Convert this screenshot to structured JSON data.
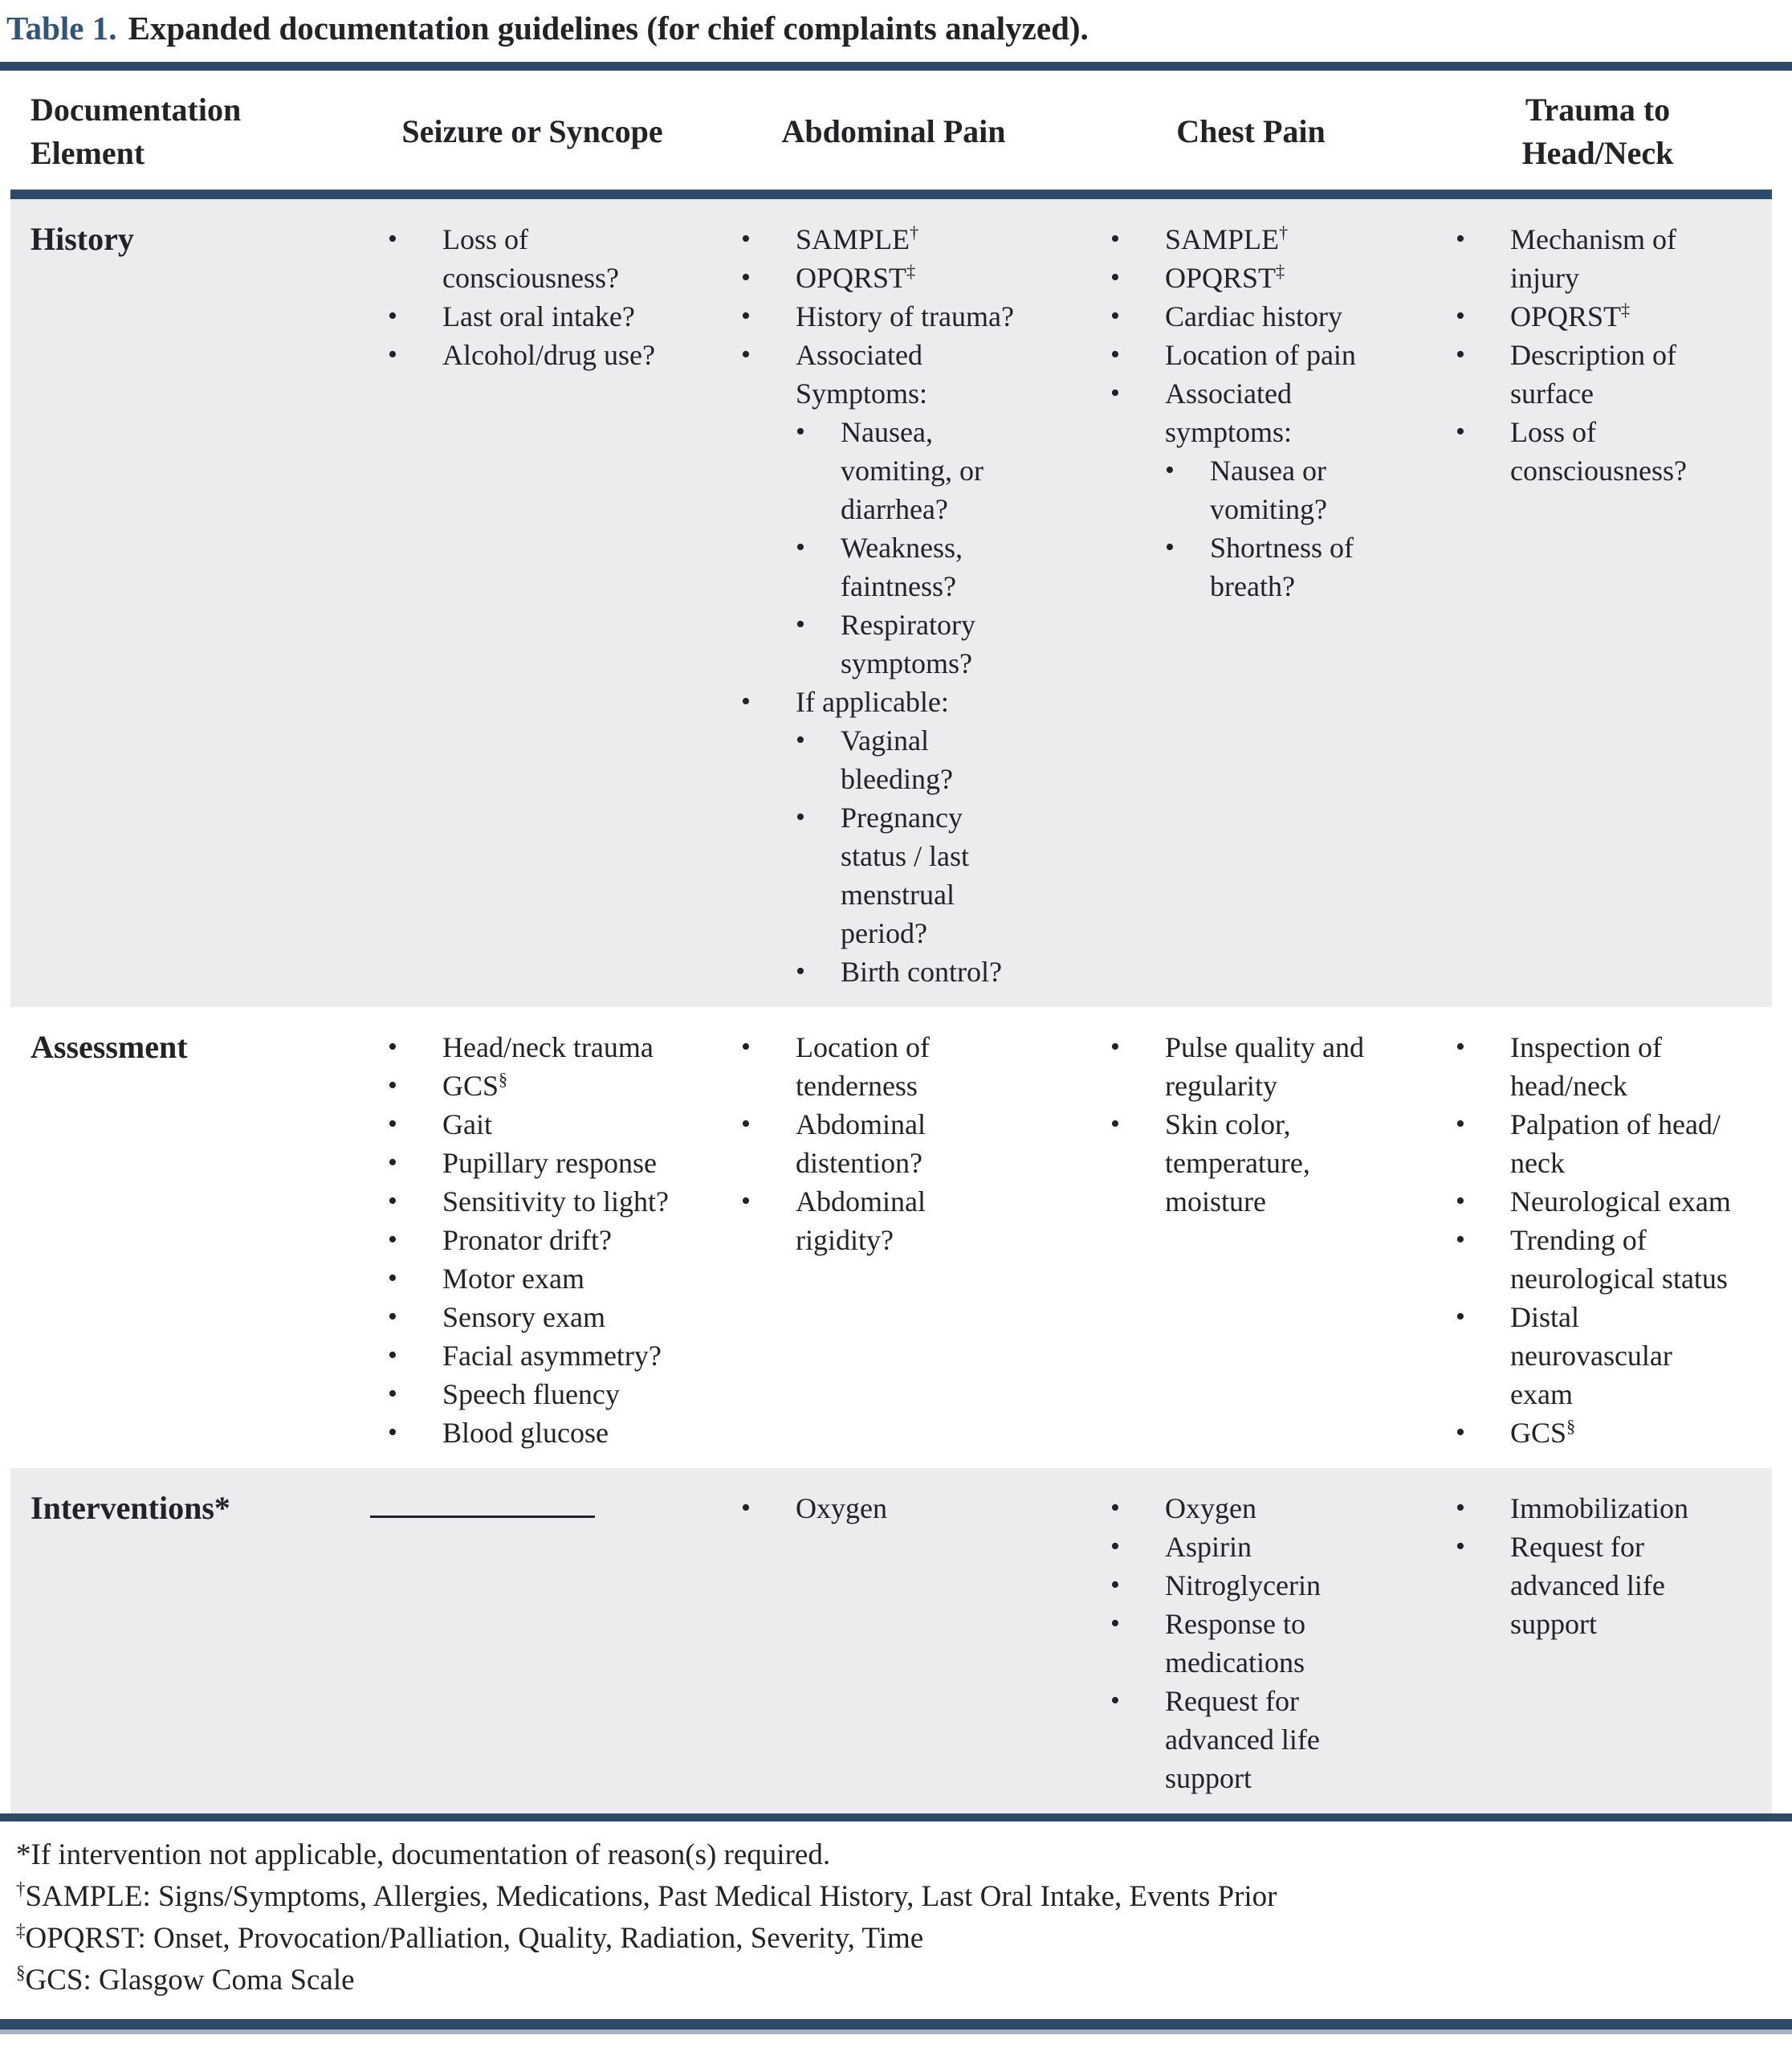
{
  "title": {
    "label": "Table 1.",
    "caption": "Expanded documentation guidelines (for chief complaints analyzed)."
  },
  "colors": {
    "rule_navy": "#2d4a68",
    "title_blue": "#30557c",
    "shaded_row": "#ececee",
    "text": "#232327",
    "bottom_accent": "#a9b3c1"
  },
  "header": {
    "col0": "Documentation\nElement",
    "cols": [
      "Seizure or Syncope",
      "Abdominal Pain",
      "Chest Pain",
      "Trauma to\nHead/Neck"
    ]
  },
  "rows": [
    {
      "label": "History",
      "shaded": true,
      "cells": [
        {
          "items": [
            {
              "text": "Loss of\nconsciousness?"
            },
            {
              "text": "Last oral intake?"
            },
            {
              "text": "Alcohol/drug use?"
            }
          ]
        },
        {
          "items": [
            {
              "text": "SAMPLE",
              "sup": "†"
            },
            {
              "text": "OPQRST",
              "sup": "‡"
            },
            {
              "text": "History of trauma?"
            },
            {
              "text": "Associated\nSymptoms:",
              "children": [
                {
                  "text": "Nausea,\nvomiting, or\ndiarrhea?"
                },
                {
                  "text": "Weakness,\nfaintness?"
                },
                {
                  "text": "Respiratory\nsymptoms?"
                }
              ]
            },
            {
              "text": "If applicable:",
              "children": [
                {
                  "text": "Vaginal\nbleeding?"
                },
                {
                  "text": "Pregnancy\nstatus / last\nmenstrual\nperiod?"
                },
                {
                  "text": "Birth control?"
                }
              ]
            }
          ]
        },
        {
          "items": [
            {
              "text": "SAMPLE",
              "sup": "†"
            },
            {
              "text": "OPQRST",
              "sup": "‡"
            },
            {
              "text": "Cardiac history"
            },
            {
              "text": "Location of pain"
            },
            {
              "text": "Associated\nsymptoms:",
              "children": [
                {
                  "text": "Nausea or\nvomiting?"
                },
                {
                  "text": "Shortness of\nbreath?"
                }
              ]
            }
          ]
        },
        {
          "items": [
            {
              "text": "Mechanism of\ninjury"
            },
            {
              "text": "OPQRST",
              "sup": "‡"
            },
            {
              "text": "Description of\nsurface"
            },
            {
              "text": "Loss of\nconsciousness?"
            }
          ]
        }
      ]
    },
    {
      "label": "Assessment",
      "shaded": false,
      "cells": [
        {
          "items": [
            {
              "text": "Head/neck trauma"
            },
            {
              "text": "GCS",
              "sup": "§"
            },
            {
              "text": "Gait"
            },
            {
              "text": "Pupillary response"
            },
            {
              "text": "Sensitivity to light?"
            },
            {
              "text": "Pronator drift?"
            },
            {
              "text": "Motor exam"
            },
            {
              "text": "Sensory exam"
            },
            {
              "text": "Facial asymmetry?"
            },
            {
              "text": "Speech fluency"
            },
            {
              "text": "Blood glucose"
            }
          ]
        },
        {
          "items": [
            {
              "text": "Location of\ntenderness"
            },
            {
              "text": "Abdominal\ndistention?"
            },
            {
              "text": "Abdominal\nrigidity?"
            }
          ]
        },
        {
          "items": [
            {
              "text": "Pulse quality and\nregularity"
            },
            {
              "text": "Skin color,\ntemperature,\nmoisture"
            }
          ]
        },
        {
          "items": [
            {
              "text": "Inspection of\nhead/neck"
            },
            {
              "text": "Palpation of head/\nneck"
            },
            {
              "text": "Neurological exam"
            },
            {
              "text": "Trending of\nneurological status"
            },
            {
              "text": "Distal\nneurovascular\nexam"
            },
            {
              "text": "GCS",
              "sup": "§"
            }
          ]
        }
      ]
    },
    {
      "label": "Interventions*",
      "shaded": true,
      "cells": [
        {
          "blank": true
        },
        {
          "items": [
            {
              "text": "Oxygen"
            }
          ]
        },
        {
          "items": [
            {
              "text": "Oxygen"
            },
            {
              "text": "Aspirin"
            },
            {
              "text": "Nitroglycerin"
            },
            {
              "text": "Response to\nmedications"
            },
            {
              "text": "Request for\nadvanced life\nsupport"
            }
          ]
        },
        {
          "items": [
            {
              "text": "Immobilization"
            },
            {
              "text": "Request for\nadvanced life\nsupport"
            }
          ]
        }
      ]
    }
  ],
  "footnotes": [
    {
      "marker": "*",
      "sup": false,
      "text": "If intervention not applicable, documentation of reason(s) required."
    },
    {
      "marker": "†",
      "sup": true,
      "text": "SAMPLE: Signs/Symptoms, Allergies, Medications, Past Medical History, Last Oral Intake, Events Prior"
    },
    {
      "marker": "‡",
      "sup": true,
      "text": "OPQRST: Onset, Provocation/Palliation, Quality, Radiation, Severity, Time"
    },
    {
      "marker": "§",
      "sup": true,
      "text": "GCS: Glasgow Coma Scale"
    }
  ]
}
